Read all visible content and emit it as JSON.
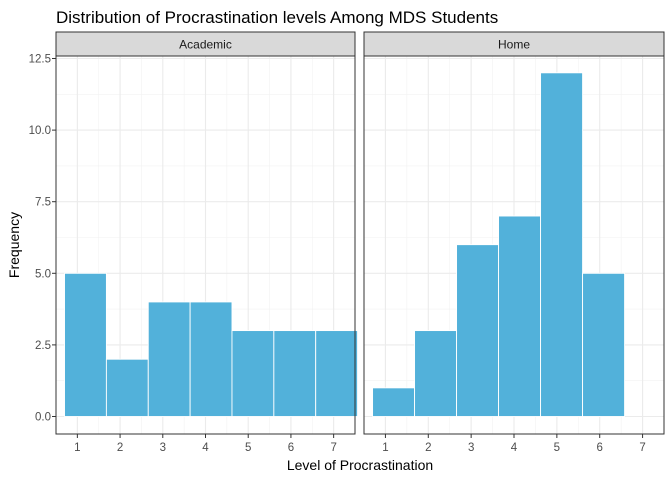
{
  "chart_data": {
    "type": "bar",
    "title": "Distribution of Procrastination levels Among MDS Students",
    "xlabel": "Level of Procrastination",
    "ylabel": "Frequency",
    "xlim": [
      0.5,
      7.5
    ],
    "ylim": [
      0,
      12.5
    ],
    "x_ticks": [
      "1",
      "2",
      "3",
      "4",
      "5",
      "6",
      "7"
    ],
    "y_ticks": [
      "0.0",
      "2.5",
      "5.0",
      "7.5",
      "10.0",
      "12.5"
    ],
    "grid": true,
    "bar_color": "#52B1DA",
    "facets": [
      {
        "name": "Academic",
        "bars": [
          {
            "x_start": 0.7,
            "x_end": 1.68,
            "value": 5
          },
          {
            "x_start": 1.68,
            "x_end": 2.66,
            "value": 2
          },
          {
            "x_start": 2.66,
            "x_end": 3.64,
            "value": 4
          },
          {
            "x_start": 3.64,
            "x_end": 4.62,
            "value": 4
          },
          {
            "x_start": 4.62,
            "x_end": 5.6,
            "value": 3
          },
          {
            "x_start": 5.6,
            "x_end": 6.58,
            "value": 3
          },
          {
            "x_start": 6.58,
            "x_end": 7.56,
            "value": 3
          }
        ]
      },
      {
        "name": "Home",
        "bars": [
          {
            "x_start": 0.7,
            "x_end": 1.68,
            "value": 1
          },
          {
            "x_start": 1.68,
            "x_end": 2.66,
            "value": 3
          },
          {
            "x_start": 2.66,
            "x_end": 3.64,
            "value": 6
          },
          {
            "x_start": 3.64,
            "x_end": 4.62,
            "value": 7
          },
          {
            "x_start": 4.62,
            "x_end": 5.6,
            "value": 12
          },
          {
            "x_start": 5.6,
            "x_end": 6.58,
            "value": 5
          }
        ]
      }
    ]
  }
}
